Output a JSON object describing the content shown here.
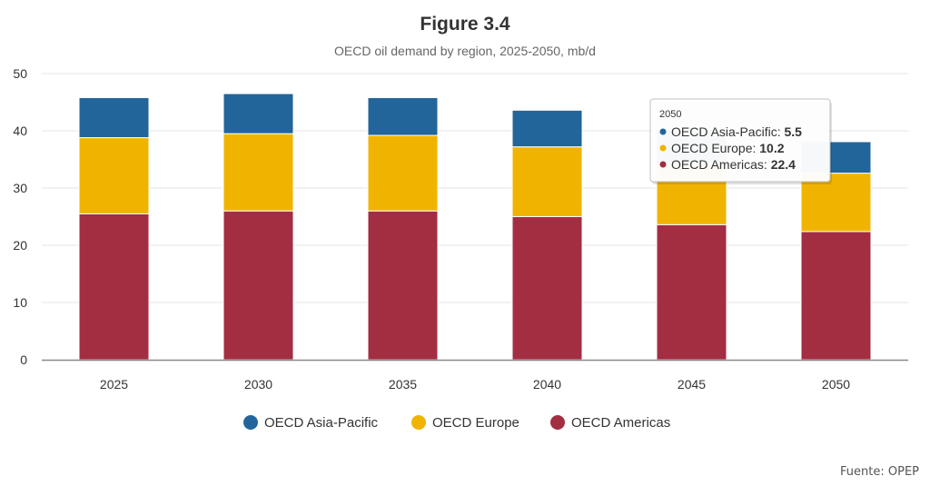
{
  "chart_data": {
    "type": "bar",
    "stacked": true,
    "title": "Figure 3.4",
    "subtitle": "OECD oil demand by region, 2025-2050, mb/d",
    "categories": [
      "2025",
      "2030",
      "2035",
      "2040",
      "2045",
      "2050"
    ],
    "series": [
      {
        "name": "OECD Americas",
        "color": "#A32D41",
        "values": [
          25.5,
          26.0,
          26.0,
          25.0,
          23.6,
          22.4
        ]
      },
      {
        "name": "OECD Europe",
        "color": "#F0B400",
        "values": [
          13.3,
          13.5,
          13.2,
          12.2,
          10.8,
          10.2
        ]
      },
      {
        "name": "OECD Asia-Pacific",
        "color": "#22659A",
        "values": [
          7.0,
          7.0,
          6.6,
          6.4,
          5.8,
          5.5
        ]
      }
    ],
    "ylim": [
      0,
      50
    ],
    "yticks": [
      "0",
      "10",
      "20",
      "30",
      "40",
      "50"
    ],
    "grid": true,
    "legend_position": "bottom",
    "legend_order": [
      "OECD Asia-Pacific",
      "OECD Europe",
      "OECD Americas"
    ],
    "tooltip": {
      "category": "2050",
      "rows": [
        {
          "label": "OECD Asia-Pacific: ",
          "value": "5.5",
          "color": "#22659A"
        },
        {
          "label": "OECD Europe: ",
          "value": "10.2",
          "color": "#F0B400"
        },
        {
          "label": "OECD Americas: ",
          "value": "22.4",
          "color": "#A32D41"
        }
      ]
    }
  },
  "source": "Fuente: OPEP"
}
